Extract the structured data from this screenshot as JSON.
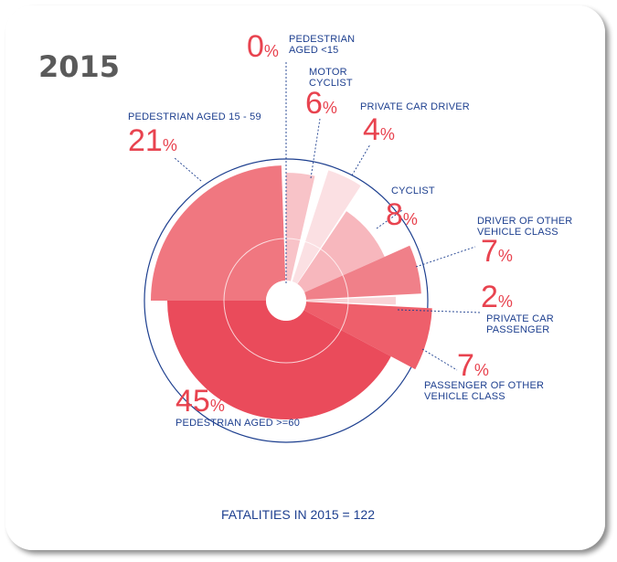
{
  "title": "2015",
  "footer": "FATALITIES IN 2015 = 122",
  "colors": {
    "label": "#1d3f8f",
    "percent": "#e8434f",
    "title": "#5a5a5a",
    "circle": "#1d3f8f"
  },
  "chart_data": {
    "type": "polar-area",
    "title": "2015",
    "total_label": "FATALITIES IN 2015 = 122",
    "unit": "%",
    "slices": [
      {
        "label": "PEDESTRIAN AGED <15",
        "value": 0,
        "color": "#f6c5c9"
      },
      {
        "label": "MOTOR CYCLIST",
        "value": 6,
        "color": "#f8c3c8"
      },
      {
        "label": "PRIVATE CAR DRIVER",
        "value": 4,
        "color": "#fbe0e3"
      },
      {
        "label": "CYCLIST",
        "value": 8,
        "color": "#f7b7bd"
      },
      {
        "label": "DRIVER OF OTHER VEHICLE CLASS",
        "value": 7,
        "color": "#f08089"
      },
      {
        "label": "PRIVATE CAR PASSENGER",
        "value": 2,
        "color": "#f9d3d6"
      },
      {
        "label": "PASSENGER OF OTHER VEHICLE CLASS",
        "value": 7,
        "color": "#ee5f6b"
      },
      {
        "label": "PEDESTRIAN AGED >=60",
        "value": 45,
        "color": "#ea4b5b"
      },
      {
        "label": "PEDESTRIAN AGED 15 - 59",
        "value": 21,
        "color": "#f07780"
      }
    ]
  },
  "labels": [
    {
      "value": "0",
      "lines": [
        "PEDESTRIAN",
        "AGED <15"
      ]
    },
    {
      "value": "6",
      "lines": [
        "MOTOR",
        "CYCLIST"
      ]
    },
    {
      "value": "4",
      "lines": [
        "PRIVATE CAR DRIVER"
      ]
    },
    {
      "value": "8",
      "lines": [
        "CYCLIST"
      ]
    },
    {
      "value": "7",
      "lines": [
        "DRIVER OF OTHER",
        "VEHICLE CLASS"
      ]
    },
    {
      "value": "2",
      "lines": [
        "PRIVATE CAR",
        "PASSENGER"
      ]
    },
    {
      "value": "7",
      "lines": [
        "PASSENGER OF OTHER",
        "VEHICLE CLASS"
      ]
    },
    {
      "value": "45",
      "lines": [
        "PEDESTRIAN AGED >=60"
      ]
    },
    {
      "value": "21",
      "lines": [
        "PEDESTRIAN AGED 15 - 59"
      ]
    }
  ]
}
